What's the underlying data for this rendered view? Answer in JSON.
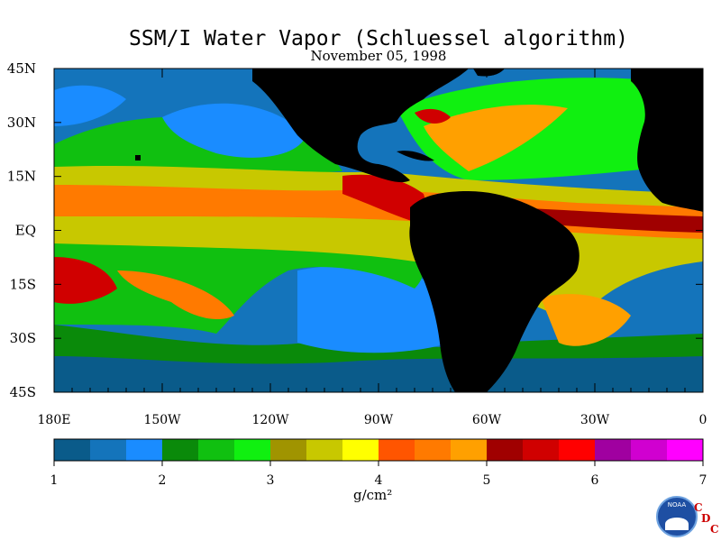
{
  "title": "SSM/I Water Vapor (Schluessel algorithm)",
  "date": "November 05, 1998",
  "y_axis_labels": [
    "45N",
    "30N",
    "15N",
    "EQ",
    "15S",
    "30S",
    "45S"
  ],
  "x_axis_labels": [
    "180E",
    "150W",
    "120W",
    "90W",
    "60W",
    "30W",
    "0"
  ],
  "colorbar": {
    "ticks": [
      "1",
      "2",
      "3",
      "4",
      "5",
      "6",
      "7"
    ],
    "colors": [
      "#0a5b8a",
      "#1474bb",
      "#1a8cff",
      "#0a8a0a",
      "#10c010",
      "#10f010",
      "#a09400",
      "#c8c800",
      "#ffff00",
      "#ff5500",
      "#ff7a00",
      "#ffa000",
      "#a00000",
      "#d00000",
      "#ff0000",
      "#a000a0",
      "#d000d0",
      "#ff00ff"
    ],
    "unit": "g/cm²"
  },
  "logo": {
    "name": "noaa-logo",
    "text": "NOAA"
  },
  "credit": {
    "c": "C",
    "d": "D",
    "c2": "C"
  }
}
